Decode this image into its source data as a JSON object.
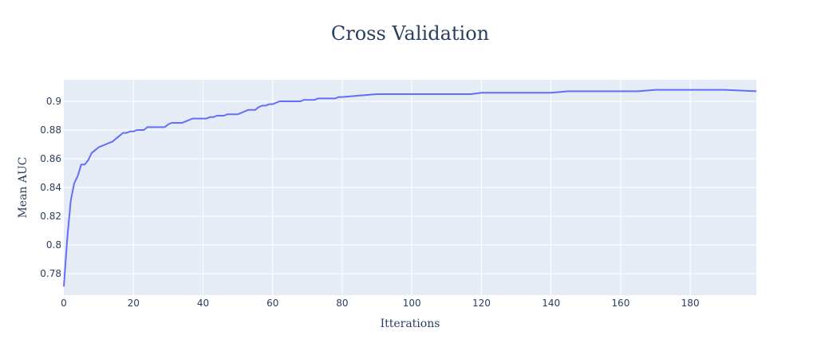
{
  "chart_data": {
    "type": "line",
    "title": "Cross Validation",
    "xlabel": "Itterations",
    "ylabel": "Mean AUC",
    "xlim": [
      0,
      199
    ],
    "ylim": [
      0.765,
      0.915
    ],
    "xticks": [
      0,
      20,
      40,
      60,
      80,
      100,
      120,
      140,
      160,
      180
    ],
    "xtick_labels": [
      "0",
      "20",
      "40",
      "60",
      "80",
      "100",
      "120",
      "140",
      "160",
      "180"
    ],
    "yticks": [
      0.78,
      0.8,
      0.82,
      0.84,
      0.86,
      0.88,
      0.9
    ],
    "ytick_labels": [
      "0.78",
      "0.8",
      "0.82",
      "0.84",
      "0.86",
      "0.88",
      "0.9"
    ],
    "grid": true,
    "colors": {
      "line": "#636efa",
      "plot_bg": "#e5ecf6",
      "grid": "#ffffff",
      "text": "#2a3f5f"
    },
    "series": [
      {
        "x": [
          0,
          1,
          2,
          3,
          4,
          5,
          6,
          7,
          8,
          9,
          10,
          11,
          12,
          13,
          14,
          15,
          16,
          17,
          18,
          19,
          20,
          21,
          22,
          23,
          24,
          25,
          26,
          27,
          28,
          29,
          30,
          31,
          32,
          33,
          34,
          35,
          36,
          37,
          38,
          39,
          40,
          41,
          42,
          43,
          44,
          45,
          46,
          47,
          48,
          49,
          50,
          51,
          52,
          53,
          54,
          55,
          56,
          57,
          58,
          59,
          60,
          61,
          62,
          63,
          64,
          65,
          66,
          67,
          68,
          69,
          70,
          71,
          72,
          73,
          74,
          75,
          76,
          77,
          78,
          79,
          80,
          85,
          90,
          95,
          100,
          105,
          110,
          115,
          117,
          120,
          125,
          130,
          140,
          145,
          150,
          155,
          160,
          165,
          170,
          175,
          180,
          190,
          199
        ],
        "y": [
          0.771,
          0.805,
          0.831,
          0.843,
          0.848,
          0.856,
          0.856,
          0.859,
          0.864,
          0.866,
          0.868,
          0.869,
          0.87,
          0.871,
          0.872,
          0.874,
          0.876,
          0.878,
          0.878,
          0.879,
          0.879,
          0.88,
          0.88,
          0.88,
          0.882,
          0.882,
          0.882,
          0.882,
          0.882,
          0.882,
          0.884,
          0.885,
          0.885,
          0.885,
          0.885,
          0.886,
          0.887,
          0.888,
          0.888,
          0.888,
          0.888,
          0.888,
          0.889,
          0.889,
          0.89,
          0.89,
          0.89,
          0.891,
          0.891,
          0.891,
          0.891,
          0.892,
          0.893,
          0.894,
          0.894,
          0.894,
          0.896,
          0.897,
          0.897,
          0.898,
          0.898,
          0.899,
          0.9,
          0.9,
          0.9,
          0.9,
          0.9,
          0.9,
          0.9,
          0.901,
          0.901,
          0.901,
          0.901,
          0.902,
          0.902,
          0.902,
          0.902,
          0.902,
          0.902,
          0.903,
          0.903,
          0.904,
          0.905,
          0.905,
          0.905,
          0.905,
          0.905,
          0.905,
          0.905,
          0.906,
          0.906,
          0.906,
          0.906,
          0.907,
          0.907,
          0.907,
          0.907,
          0.907,
          0.908,
          0.908,
          0.908,
          0.908,
          0.907
        ]
      }
    ]
  }
}
